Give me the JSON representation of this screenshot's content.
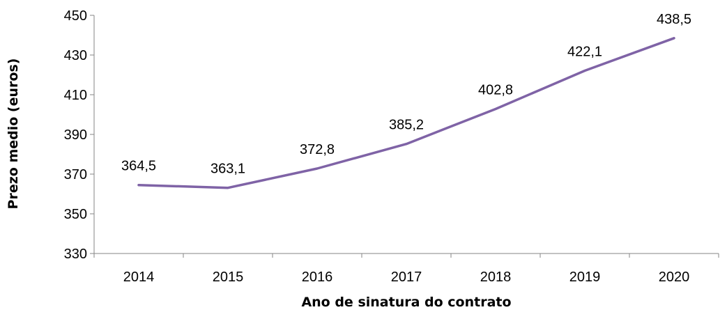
{
  "chart_data": {
    "type": "line",
    "title": "",
    "xlabel": "Ano de sinatura do contrato",
    "ylabel": "Prezo medio (euros)",
    "categories": [
      "2014",
      "2015",
      "2016",
      "2017",
      "2018",
      "2019",
      "2020"
    ],
    "series": [
      {
        "values": [
          364.5,
          363.1,
          372.8,
          385.2,
          402.8,
          422.1,
          438.5
        ],
        "labels": [
          "364,5",
          "363,1",
          "372,8",
          "385,2",
          "402,8",
          "422,1",
          "438,5"
        ],
        "color": "#7f63a6"
      }
    ],
    "ylim": [
      330,
      450
    ],
    "yticks": [
      "330",
      "350",
      "370",
      "390",
      "410",
      "430",
      "450"
    ],
    "grid": false,
    "legend": "none"
  }
}
